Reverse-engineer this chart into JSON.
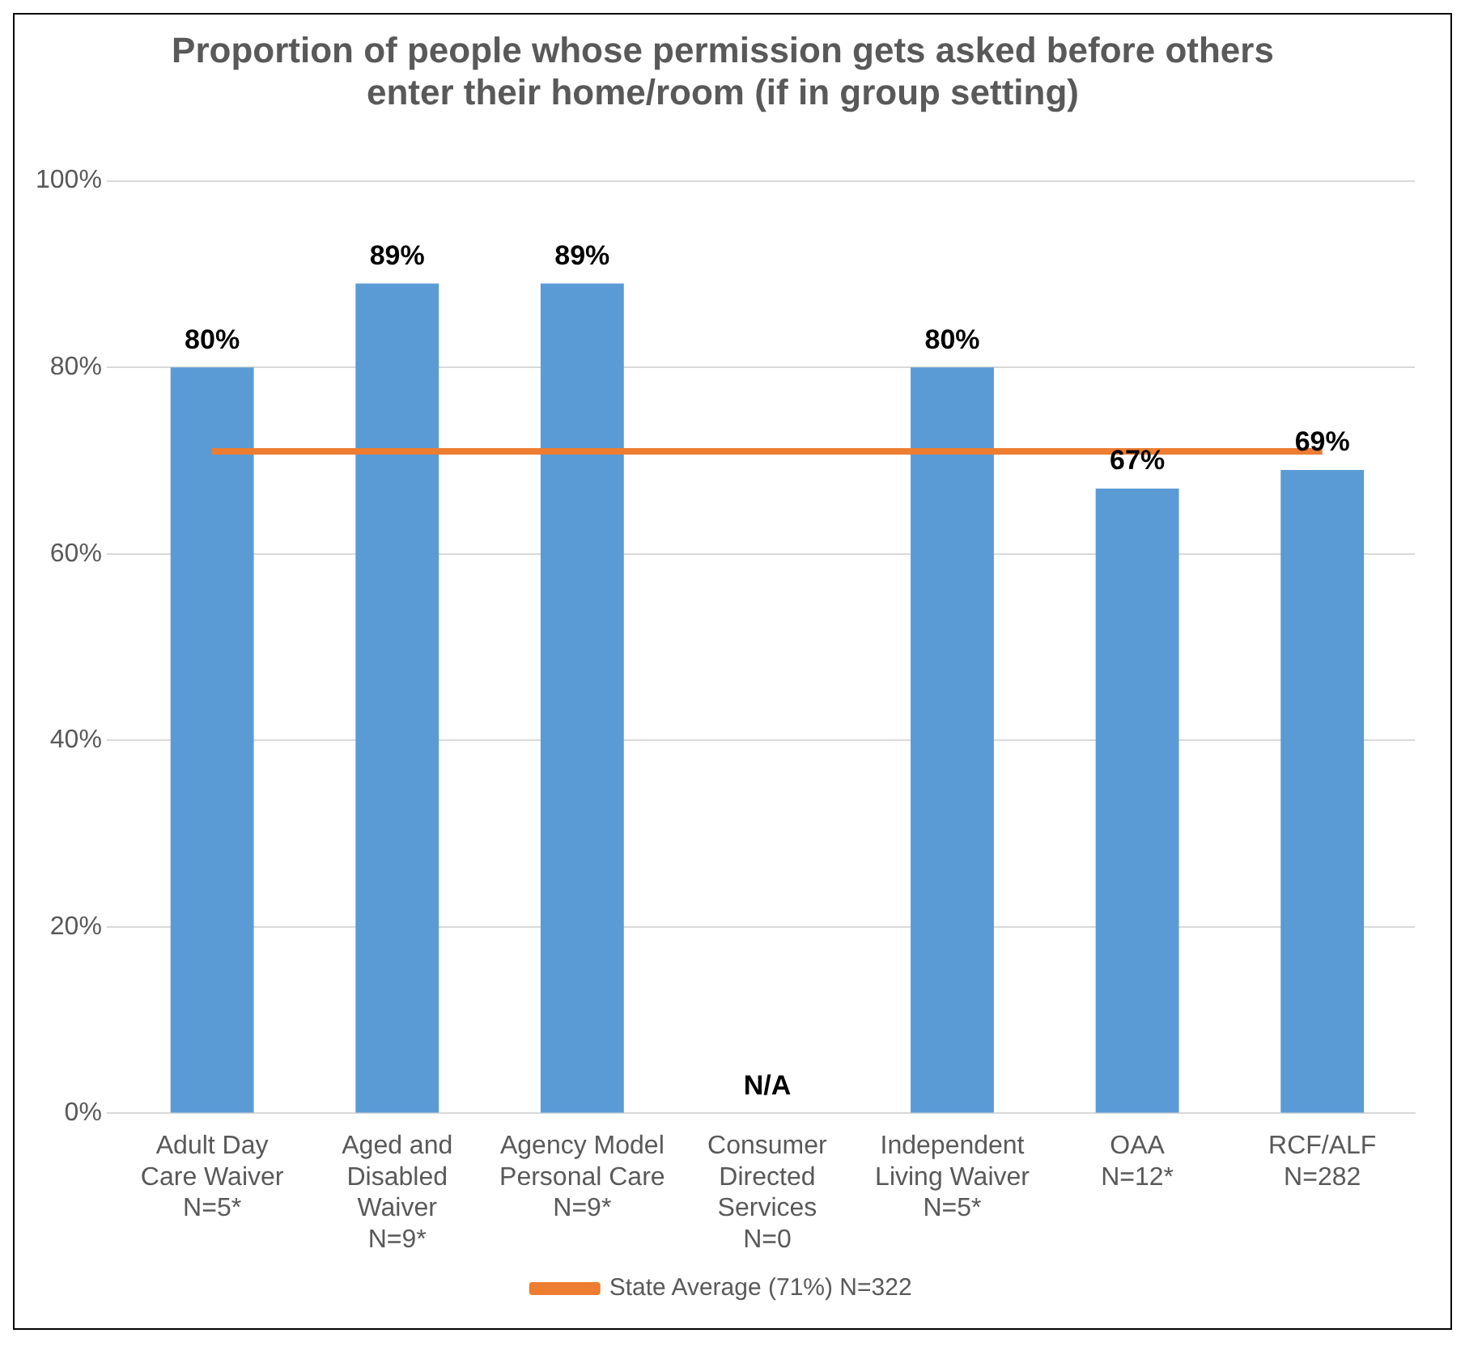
{
  "chart_data": {
    "type": "bar",
    "title": "Proportion of people whose permission gets asked before others\nenter their home/room (if in group setting)",
    "categories": [
      "Adult Day\nCare Waiver\nN=5*",
      "Aged and\nDisabled\nWaiver\nN=9*",
      "Agency Model\nPersonal Care\nN=9*",
      "Consumer\nDirected\nServices\nN=0",
      "Independent\nLiving Waiver\nN=5*",
      "OAA\nN=12*",
      "RCF/ALF\nN=282"
    ],
    "series": [
      {
        "color": "#5b9bd5",
        "values": [
          80,
          89,
          89,
          null,
          80,
          67,
          69
        ],
        "value_labels": [
          "80%",
          "89%",
          "89%",
          "N/A",
          "80%",
          "67%",
          "69%"
        ]
      },
      {
        "type": "line",
        "name": "State Average (71%) N=322",
        "color": "#ed7d31",
        "values": [
          71,
          71,
          71,
          71,
          71,
          71,
          71
        ]
      }
    ],
    "ylim": [
      0,
      100
    ],
    "yticks": [
      {
        "value": 0,
        "label": "0%"
      },
      {
        "value": 20,
        "label": "20%"
      },
      {
        "value": 40,
        "label": "40%"
      },
      {
        "value": 60,
        "label": "60%"
      },
      {
        "value": 80,
        "label": "80%"
      },
      {
        "value": 100,
        "label": "100%"
      }
    ],
    "grid": "y",
    "legend": "bottom",
    "marker": "none"
  }
}
